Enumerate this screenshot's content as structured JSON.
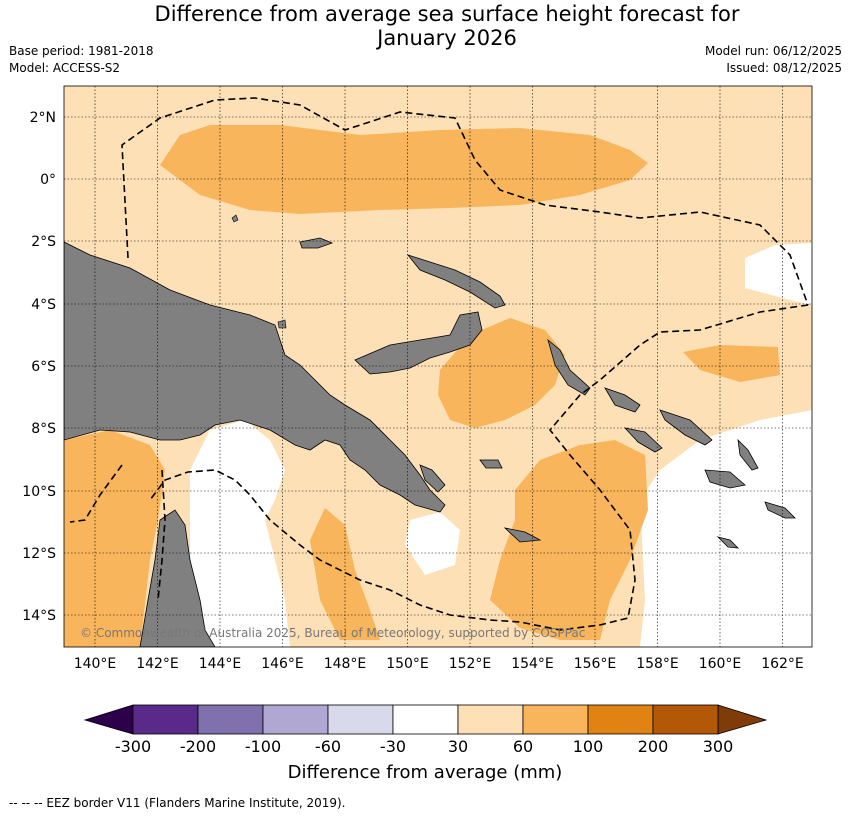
{
  "title": {
    "line1": "Difference from average sea surface height forecast for",
    "line2": "January 2026"
  },
  "meta": {
    "base_period": "Base period: 1981-2018",
    "model": "Model: ACCESS-S2",
    "model_run": "Model run: 06/12/2025",
    "issued": "Issued: 08/12/2025"
  },
  "map": {
    "lat_labels": [
      "2°N",
      "0°",
      "2°S",
      "4°S",
      "6°S",
      "8°S",
      "10°S",
      "12°S",
      "14°S"
    ],
    "lon_labels": [
      "140°E",
      "142°E",
      "144°E",
      "146°E",
      "148°E",
      "150°E",
      "152°E",
      "154°E",
      "156°E",
      "158°E",
      "160°E",
      "162°E"
    ],
    "copyright": "© Commonwealth of Australia 2025, Bureau of Meteorology, supported by COSPPac",
    "colors": {
      "land": "#808080",
      "band_30_60": "#fde0b6",
      "band_60_100": "#f9b55c",
      "band_neg30_30": "#ffffff"
    }
  },
  "colorbar": {
    "title": "Difference from average (mm)",
    "tick_labels": [
      "-300",
      "-200",
      "-100",
      "-60",
      "-30",
      "30",
      "60",
      "100",
      "200",
      "300"
    ],
    "segment_colors": [
      "#5a2a8a",
      "#8070ae",
      "#b0a8d2",
      "#d8d9eb",
      "#ffffff",
      "#fde0b6",
      "#f9b55c",
      "#e08312",
      "#b35806"
    ],
    "under_color": "#2d004b",
    "over_color": "#7f3b08"
  },
  "footer": "--  --  -- EEZ border V11 (Flanders Marine Institute, 2019)."
}
